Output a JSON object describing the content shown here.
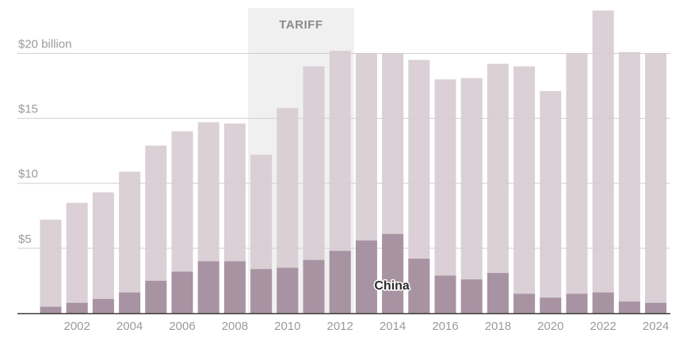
{
  "chart_data": {
    "type": "bar",
    "stacked": false,
    "categories": [
      "2001",
      "2002",
      "2003",
      "2004",
      "2005",
      "2006",
      "2007",
      "2008",
      "2009",
      "2010",
      "2011",
      "2012",
      "2013",
      "2014",
      "2015",
      "2016",
      "2017",
      "2018",
      "2019",
      "2020",
      "2021",
      "2022",
      "2023",
      "2024"
    ],
    "x_tick_labels": [
      "2002",
      "2004",
      "2006",
      "2008",
      "2010",
      "2012",
      "2014",
      "2016",
      "2018",
      "2020",
      "2022",
      "2024"
    ],
    "y_tick_labels": [
      {
        "value": 5,
        "label": "$5"
      },
      {
        "value": 10,
        "label": "$10"
      },
      {
        "value": 15,
        "label": "$15"
      },
      {
        "value": 20,
        "label": "$20 billion"
      }
    ],
    "ylim": [
      0,
      23.5
    ],
    "series": [
      {
        "values": [
          7.2,
          8.5,
          9.3,
          10.9,
          12.9,
          14.0,
          14.7,
          14.6,
          12.2,
          15.8,
          19.0,
          20.2,
          20.0,
          20.0,
          19.5,
          18.0,
          18.1,
          19.2,
          19.0,
          17.1,
          20.0,
          23.3,
          20.1,
          20.0
        ],
        "color": "#d6cbd1"
      },
      {
        "name": "China",
        "values": [
          0.5,
          0.8,
          1.1,
          1.6,
          2.5,
          3.2,
          4.0,
          4.0,
          3.4,
          3.5,
          4.1,
          4.8,
          5.6,
          6.1,
          4.2,
          2.9,
          2.6,
          3.1,
          1.5,
          1.2,
          1.5,
          1.6,
          0.9,
          0.8
        ],
        "color": "#a893a3"
      }
    ],
    "annotations": {
      "band": {
        "label": "TARIFF",
        "from": "2009",
        "to": "2012",
        "color": "#f0f0f0"
      },
      "series_label": {
        "text": "China",
        "at": "2014"
      }
    },
    "grid": true
  }
}
